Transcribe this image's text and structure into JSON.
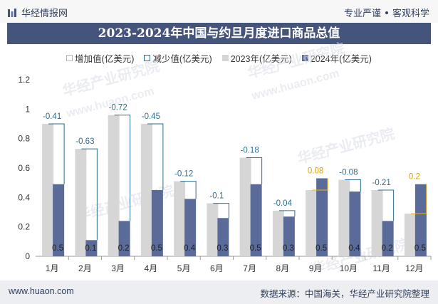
{
  "header": {
    "brand": "华经情报网",
    "tagline_left": "专业严谨",
    "tagline_right": "客观科学"
  },
  "title": "2023-2024年中国与约旦月度进口商品总值",
  "legend": {
    "increase": "增加值(亿美元)",
    "decrease": "减少值(亿美元)",
    "y2023": "2023年(亿美元)",
    "y2024": "2024年(亿美元)"
  },
  "watermark": {
    "cn": "华经产业研究院",
    "url": "www.huaon.com"
  },
  "footer": {
    "url": "www.huaon.com",
    "source": "数据来源：中国海关，华经产业研究院整理"
  },
  "colors": {
    "y2023": "#d6d6d6",
    "y2024": "#5a6b9a",
    "increase": "#f5b800",
    "decrease": "#2e6e8e",
    "title_bg": "#45547a"
  },
  "chart_data": {
    "type": "bar",
    "categories": [
      "1月",
      "2月",
      "3月",
      "4月",
      "5月",
      "6月",
      "7月",
      "8月",
      "9月",
      "10月",
      "11月",
      "12月"
    ],
    "series": [
      {
        "name": "2023年(亿美元)",
        "values": [
          0.9,
          0.73,
          0.96,
          0.9,
          0.51,
          0.36,
          0.67,
          0.31,
          0.45,
          0.52,
          0.45,
          0.29
        ]
      },
      {
        "name": "2024年(亿美元)",
        "values": [
          0.49,
          0.11,
          0.24,
          0.45,
          0.39,
          0.26,
          0.49,
          0.27,
          0.53,
          0.44,
          0.24,
          0.49
        ]
      }
    ],
    "changes": [
      -0.41,
      -0.63,
      -0.72,
      -0.45,
      -0.12,
      -0.1,
      -0.18,
      -0.04,
      0.08,
      -0.08,
      -0.21,
      0.2
    ],
    "change_labels": [
      "-0.41",
      "-0.63",
      "-0.72",
      "-0.45",
      "-0.12",
      "-0.1",
      "-0.18",
      "-0.04",
      "0.08",
      "-0.08",
      "-0.21",
      "0.2"
    ],
    "bar_labels": [
      "0.5",
      "0.1",
      "0.2",
      "0.5",
      "0.4",
      "0.3",
      "0.5",
      "0.3",
      "0.5",
      "0.4",
      "0.2",
      "0.5"
    ],
    "yticks": [
      "0",
      "0.2",
      "0.4",
      "0.6",
      "0.8",
      "1",
      "1.2"
    ],
    "ylim": [
      0,
      1.2
    ],
    "grid": false,
    "legend_position": "top-center"
  }
}
